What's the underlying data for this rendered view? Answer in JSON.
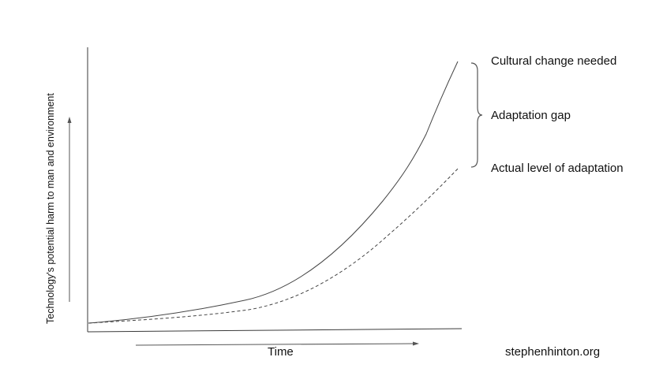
{
  "diagram": {
    "y_axis_label": "Technology's potential harm to man and environment",
    "x_axis_label": "Time",
    "labels": {
      "cultural_change": "Cultural change needed",
      "adaptation_gap": "Adaptation gap",
      "actual_adaptation": "Actual level of adaptation"
    },
    "credit": "stephenhinton.org",
    "series": [
      {
        "key": "needed",
        "style": "solid"
      },
      {
        "key": "actual",
        "style": "dashed"
      }
    ]
  }
}
